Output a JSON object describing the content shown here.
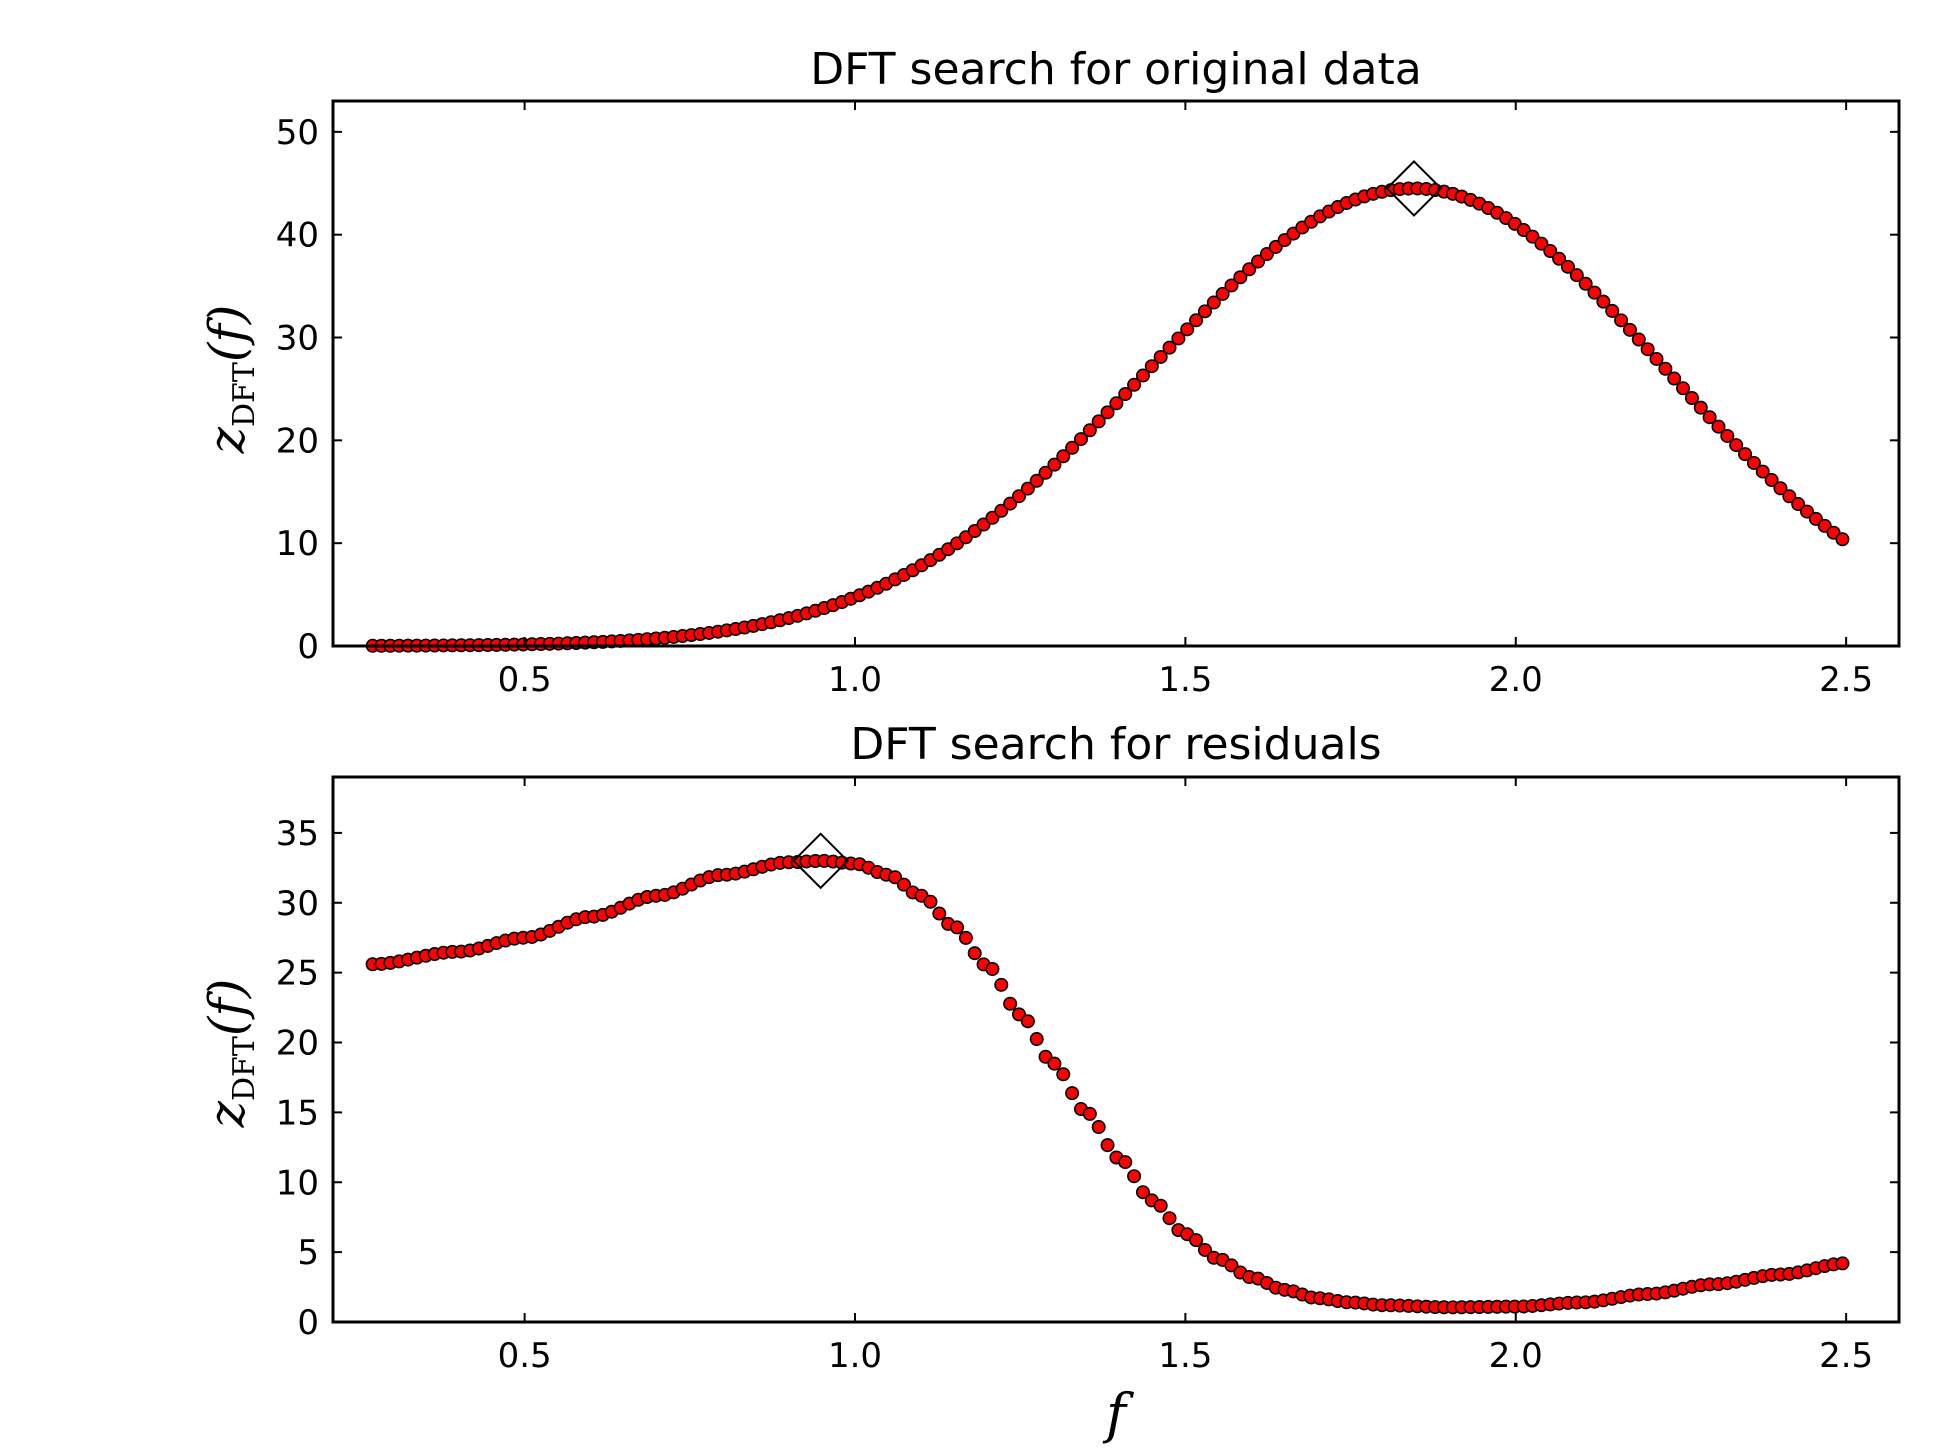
{
  "chart_data": [
    {
      "type": "scatter",
      "title": "DFT search for original data",
      "xlabel": "",
      "ylabel": "z_DFT(f)",
      "ylabel_main": "z",
      "ylabel_sub": "DFT",
      "ylabel_paren": "(f)",
      "xlim": [
        0.21,
        2.58
      ],
      "ylim": [
        0,
        53
      ],
      "xticks": [
        0.5,
        1.0,
        1.5,
        2.0,
        2.5
      ],
      "xtick_labels": [
        "0.5",
        "1.0",
        "1.5",
        "2.0",
        "2.5"
      ],
      "yticks": [
        0,
        10,
        20,
        30,
        40,
        50
      ],
      "ytick_labels": [
        "0",
        "10",
        "20",
        "30",
        "40",
        "50"
      ],
      "curve": {
        "x_start": 0.27,
        "x_end": 2.5,
        "step": 0.0134,
        "peak_x": 1.846,
        "peak_y": 44.5,
        "sigma_left": 0.4,
        "sigma_right": 0.38
      },
      "highlight": {
        "x": 1.846,
        "y": 44.5
      },
      "marker_color": "#ff0000",
      "marker_edge_color": "#000000",
      "highlight_color": "#000000",
      "grid": false
    },
    {
      "type": "scatter",
      "title": "DFT search for residuals",
      "xlabel": "f",
      "ylabel": "z_DFT(f)",
      "ylabel_main": "z",
      "ylabel_sub": "DFT",
      "ylabel_paren": "(f)",
      "xlim": [
        0.21,
        2.58
      ],
      "ylim": [
        0,
        39
      ],
      "xticks": [
        0.5,
        1.0,
        1.5,
        2.0,
        2.5
      ],
      "xtick_labels": [
        "0.5",
        "1.0",
        "1.5",
        "2.0",
        "2.5"
      ],
      "yticks": [
        0,
        5,
        10,
        15,
        20,
        25,
        30,
        35
      ],
      "ytick_labels": [
        "0",
        "5",
        "10",
        "15",
        "20",
        "25",
        "30",
        "35"
      ],
      "curve": {
        "x_start": 0.27,
        "x_end": 2.5,
        "step": 0.0134,
        "knots": [
          [
            0.27,
            25.6
          ],
          [
            0.4,
            26.5
          ],
          [
            0.5,
            27.5
          ],
          [
            0.6,
            29.0
          ],
          [
            0.7,
            30.5
          ],
          [
            0.8,
            32.0
          ],
          [
            0.9,
            32.9
          ],
          [
            0.95,
            33.0
          ],
          [
            1.0,
            32.8
          ],
          [
            1.05,
            32.0
          ],
          [
            1.1,
            30.5
          ],
          [
            1.15,
            28.3
          ],
          [
            1.2,
            25.5
          ],
          [
            1.25,
            22.0
          ],
          [
            1.3,
            18.5
          ],
          [
            1.35,
            15.0
          ],
          [
            1.4,
            11.7
          ],
          [
            1.45,
            8.7
          ],
          [
            1.5,
            6.3
          ],
          [
            1.55,
            4.5
          ],
          [
            1.6,
            3.2
          ],
          [
            1.65,
            2.3
          ],
          [
            1.7,
            1.7
          ],
          [
            1.75,
            1.4
          ],
          [
            1.8,
            1.2
          ],
          [
            1.9,
            1.05
          ],
          [
            2.0,
            1.1
          ],
          [
            2.1,
            1.4
          ],
          [
            2.2,
            2.0
          ],
          [
            2.3,
            2.7
          ],
          [
            2.4,
            3.4
          ],
          [
            2.5,
            4.2
          ]
        ]
      },
      "highlight": {
        "x": 0.948,
        "y": 33.0
      },
      "marker_color": "#ff0000",
      "marker_edge_color": "#000000",
      "highlight_color": "#000000",
      "grid": false
    }
  ]
}
